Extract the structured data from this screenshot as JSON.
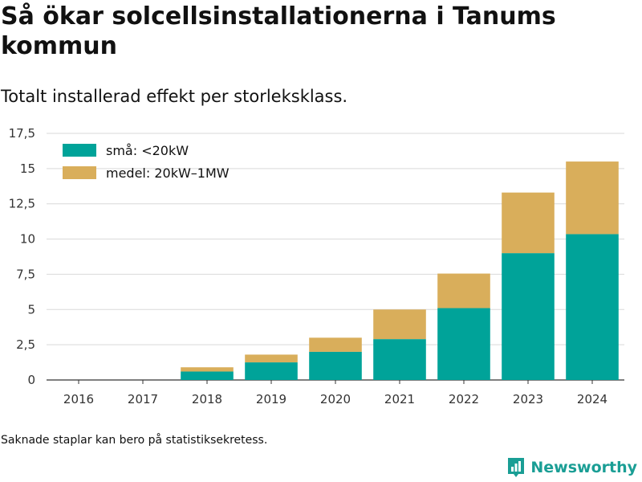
{
  "header": {
    "title": "Så ökar solcellsinstallationerna i Tanums kommun",
    "subtitle": "Totalt installerad effekt per storleksklass."
  },
  "chart_data": {
    "type": "bar",
    "stacked": true,
    "categories": [
      "2016",
      "2017",
      "2018",
      "2019",
      "2020",
      "2021",
      "2022",
      "2023",
      "2024"
    ],
    "series": [
      {
        "name": "små: <20kW",
        "color": "#00a399",
        "values": [
          0,
          0,
          0.6,
          1.25,
          2.0,
          2.9,
          5.1,
          9.0,
          10.35
        ]
      },
      {
        "name": "medel: 20kW–1MW",
        "color": "#d9ae5b",
        "values": [
          0,
          0,
          0.3,
          0.55,
          1.0,
          2.1,
          2.45,
          4.3,
          5.15
        ]
      }
    ],
    "y_ticks": [
      "0",
      "2,5",
      "5",
      "7,5",
      "10",
      "12,5",
      "15",
      "17,5"
    ],
    "ylim": [
      0,
      17.5
    ],
    "grid": true,
    "legend_position": "top-left"
  },
  "footer": {
    "note": "Saknade staplar kan bero på statistiksekretess.",
    "brand": "Newsworthy",
    "brand_icon": "newsworthy-logo-icon",
    "brand_color": "#1a9e95"
  }
}
